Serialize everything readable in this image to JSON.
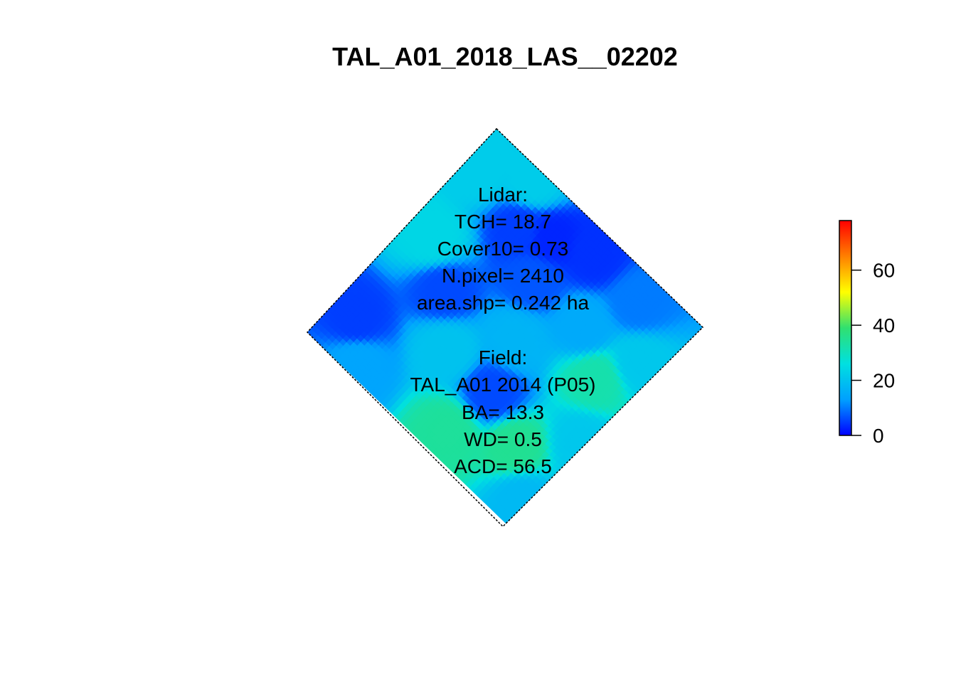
{
  "chart_data": {
    "type": "heatmap",
    "title": "TAL_A01_2018_LAS__02202",
    "colorbar": {
      "range": [
        0,
        78
      ],
      "ticks": [
        0,
        20,
        40,
        60
      ],
      "colors": [
        "#0000FF",
        "#00A0FF",
        "#00E0E0",
        "#30E070",
        "#FFFF00",
        "#FF8000",
        "#FF0000"
      ]
    },
    "regions": [
      {
        "u": 0.55,
        "v": 0.08,
        "value": 4
      },
      {
        "u": 0.3,
        "v": 0.2,
        "value": 5
      },
      {
        "u": 0.4,
        "v": 0.15,
        "value": 3
      },
      {
        "u": 0.1,
        "v": 0.85,
        "value": 5
      },
      {
        "u": 0.25,
        "v": 0.55,
        "value": 6
      },
      {
        "u": 0.62,
        "v": 0.7,
        "value": 6
      },
      {
        "u": 0.45,
        "v": 0.3,
        "value": 7
      },
      {
        "u": 0.78,
        "v": 0.1,
        "value": 10
      },
      {
        "u": 0.22,
        "v": 0.05,
        "value": 22
      },
      {
        "u": 0.1,
        "v": 0.45,
        "value": 24
      },
      {
        "u": 0.85,
        "v": 0.4,
        "value": 32
      },
      {
        "u": 0.6,
        "v": 0.9,
        "value": 34
      },
      {
        "u": 0.8,
        "v": 0.78,
        "value": 35
      },
      {
        "u": 0.55,
        "v": 0.5,
        "value": 17
      },
      {
        "u": 0.95,
        "v": 0.9,
        "value": 18
      },
      {
        "u": 0.92,
        "v": 0.25,
        "value": 21
      },
      {
        "u": 0.7,
        "v": 0.3,
        "value": 15
      },
      {
        "u": 0.4,
        "v": 0.7,
        "value": 20
      },
      {
        "u": 0.05,
        "v": 0.15,
        "value": 22
      },
      {
        "u": 0.2,
        "v": 0.95,
        "value": 14
      },
      {
        "u": 0.97,
        "v": 0.6,
        "value": 21
      }
    ]
  },
  "annotations": {
    "lidar": [
      "Lidar:",
      "TCH= 18.7",
      "Cover10= 0.73",
      "N.pixel= 2410",
      "area.shp= 0.242 ha"
    ],
    "field": [
      "Field:",
      "TAL_A01 2014 (P05)",
      "BA= 13.3",
      "WD= 0.5",
      "ACD= 56.5"
    ]
  }
}
